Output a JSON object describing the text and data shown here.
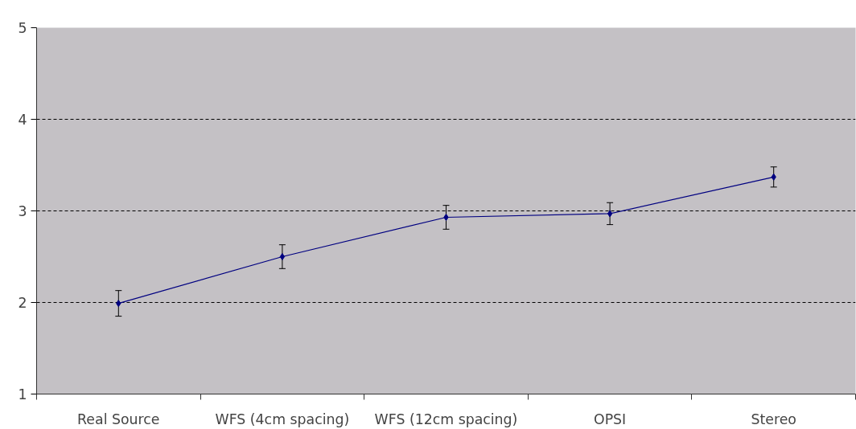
{
  "chart_data": {
    "type": "line",
    "categories": [
      "Real Source",
      "WFS (4cm spacing)",
      "WFS (12cm spacing)",
      "OPSI",
      "Stereo"
    ],
    "series": [
      {
        "color": "#000080",
        "values": [
          1.99,
          2.5,
          2.93,
          2.97,
          3.37
        ],
        "errors": [
          0.14,
          0.13,
          0.13,
          0.12,
          0.11
        ]
      }
    ],
    "ylim": [
      1,
      5
    ],
    "yticks": [
      1,
      2,
      3,
      4,
      5
    ],
    "grid": "y",
    "marker": "diamond",
    "line_style": "solid"
  }
}
